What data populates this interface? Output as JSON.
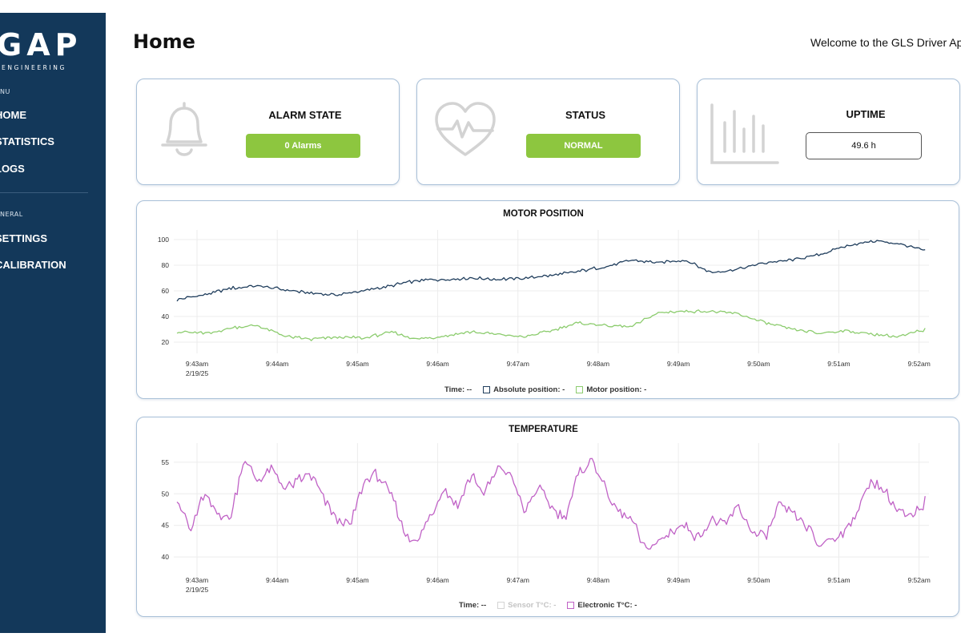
{
  "sidebar": {
    "logo_text": "GAP",
    "logo_sub": "ENGINEERING",
    "menu_label": "NU",
    "menu_items": [
      {
        "label": "HOME"
      },
      {
        "label": "STATISTICS"
      },
      {
        "label": "LOGS"
      }
    ],
    "general_label": "NERAL",
    "general_items": [
      {
        "label": "SETTINGS"
      },
      {
        "label": "CALIBRATION"
      }
    ]
  },
  "header": {
    "title": "Home",
    "welcome": "Welcome to the GLS Driver App"
  },
  "cards": {
    "alarm": {
      "title": "ALARM STATE",
      "value": "0 Alarms",
      "icon": "bell-icon"
    },
    "status": {
      "title": "STATUS",
      "value": "NORMAL",
      "icon": "heartbeat-icon"
    },
    "uptime": {
      "title": "UPTIME",
      "value": "49.6 h",
      "icon": "bar-chart-icon"
    }
  },
  "colors": {
    "sidebar_bg": "#13385a",
    "accent_green": "#8dc63f",
    "absolute_position": "#1f3d5c",
    "motor_position": "#8ccc6e",
    "electronic_temp": "#c062c6",
    "sensor_temp": "#d4d4d4"
  },
  "chart_data": [
    {
      "type": "line",
      "title": "MOTOR POSITION",
      "x_ticks": [
        "9:43am",
        "9:44am",
        "9:45am",
        "9:46am",
        "9:47am",
        "9:48am",
        "9:49am",
        "9:50am",
        "9:51am",
        "9:52am"
      ],
      "x_date_label": "2/19/25",
      "x_range": [
        "9:42:45am",
        "9:52:05am"
      ],
      "y_ticks": [
        20,
        40,
        60,
        80,
        100
      ],
      "ylim": [
        20,
        100
      ],
      "grid": true,
      "legend_position": "bottom",
      "legend_time": "Time: --",
      "series": [
        {
          "name": "Absolute position: -",
          "x": [
            "9:42:45",
            "9:43:10",
            "9:43:25",
            "9:43:45",
            "9:44:05",
            "9:44:25",
            "9:44:45",
            "9:45:05",
            "9:45:25",
            "9:45:45",
            "9:46:05",
            "9:46:25",
            "9:46:45",
            "9:47:05",
            "9:47:25",
            "9:47:45",
            "9:48:05",
            "9:48:25",
            "9:48:45",
            "9:49:05",
            "9:49:25",
            "9:49:45",
            "9:50:05",
            "9:50:25",
            "9:50:45",
            "9:51:05",
            "9:51:25",
            "9:51:45",
            "9:52:05"
          ],
          "values": [
            53,
            58,
            62,
            64,
            61,
            58,
            57,
            60,
            64,
            68,
            69,
            70,
            69,
            70,
            72,
            75,
            79,
            84,
            82,
            84,
            74,
            77,
            82,
            84,
            88,
            95,
            99,
            97,
            91
          ]
        },
        {
          "name": "Motor position: -",
          "x": [
            "9:42:45",
            "9:43:10",
            "9:43:25",
            "9:43:45",
            "9:44:05",
            "9:44:25",
            "9:44:45",
            "9:45:05",
            "9:45:25",
            "9:45:45",
            "9:46:05",
            "9:46:25",
            "9:46:45",
            "9:47:05",
            "9:47:25",
            "9:47:45",
            "9:48:05",
            "9:48:25",
            "9:48:45",
            "9:49:05",
            "9:49:25",
            "9:49:45",
            "9:50:05",
            "9:50:25",
            "9:50:45",
            "9:51:05",
            "9:51:25",
            "9:51:45",
            "9:52:05"
          ],
          "values": [
            28,
            27,
            31,
            33,
            25,
            22,
            24,
            23,
            28,
            22,
            25,
            28,
            26,
            24,
            29,
            35,
            33,
            32,
            43,
            44,
            44,
            42,
            35,
            30,
            27,
            29,
            26,
            24,
            30
          ]
        }
      ]
    },
    {
      "type": "line",
      "title": "TEMPERATURE",
      "x_ticks": [
        "9:43am",
        "9:44am",
        "9:45am",
        "9:46am",
        "9:47am",
        "9:48am",
        "9:49am",
        "9:50am",
        "9:51am",
        "9:52am"
      ],
      "x_date_label": "2/19/25",
      "x_range": [
        "9:42:45am",
        "9:52:05am"
      ],
      "y_ticks": [
        40,
        45,
        50,
        55
      ],
      "ylim": [
        38.5,
        56.5
      ],
      "grid": true,
      "legend_position": "bottom",
      "legend_time": "Time: --",
      "series": [
        {
          "name": "Sensor T°C: -",
          "values": []
        },
        {
          "name": "Electronic T°C: -",
          "x": [
            "9:42:45",
            "9:42:55",
            "9:43:05",
            "9:43:15",
            "9:43:25",
            "9:43:35",
            "9:43:45",
            "9:43:55",
            "9:44:05",
            "9:44:15",
            "9:44:25",
            "9:44:35",
            "9:44:45",
            "9:44:55",
            "9:45:05",
            "9:45:15",
            "9:45:25",
            "9:45:35",
            "9:45:45",
            "9:45:55",
            "9:46:05",
            "9:46:15",
            "9:46:25",
            "9:46:35",
            "9:46:45",
            "9:46:55",
            "9:47:05",
            "9:47:15",
            "9:47:25",
            "9:47:35",
            "9:47:45",
            "9:47:55",
            "9:48:05",
            "9:48:15",
            "9:48:25",
            "9:48:35",
            "9:48:45",
            "9:48:55",
            "9:49:05",
            "9:49:15",
            "9:49:25",
            "9:49:35",
            "9:49:45",
            "9:49:55",
            "9:50:05",
            "9:50:15",
            "9:50:25",
            "9:50:35",
            "9:50:45",
            "9:50:55",
            "9:51:05",
            "9:51:15",
            "9:51:25",
            "9:51:35",
            "9:51:45",
            "9:51:55",
            "9:52:05"
          ],
          "values": [
            49.5,
            44,
            50,
            47,
            46,
            55.5,
            52,
            54,
            51,
            52,
            53,
            49,
            46,
            45,
            52,
            53,
            50,
            44,
            42,
            47,
            51,
            48,
            53,
            50,
            54,
            53,
            47,
            51,
            48,
            46,
            53,
            55.5,
            51,
            47,
            46,
            41,
            42.5,
            44,
            45,
            43,
            46,
            45,
            48,
            44,
            43,
            48,
            47,
            45,
            42,
            43,
            44,
            48,
            52,
            50,
            47,
            46,
            49
          ]
        }
      ]
    }
  ]
}
